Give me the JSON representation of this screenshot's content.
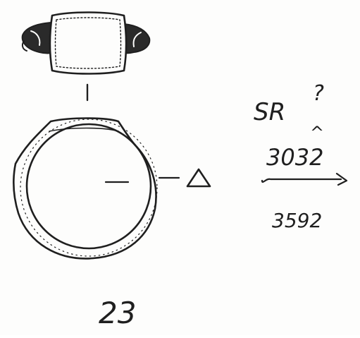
{
  "sheet": {
    "ink_color": "#1f1f1f",
    "paper_color": "#fdfdfc"
  },
  "drawing": {
    "top_view": "ring-bezel-top-view",
    "front_view": "ring-front-view",
    "section_marker_icon": "triangle-section-icon"
  },
  "notes": {
    "series": "SR",
    "query": "?",
    "caret": "^",
    "number_1": "3032",
    "number_2": "3592"
  },
  "figure": {
    "number": "23"
  }
}
